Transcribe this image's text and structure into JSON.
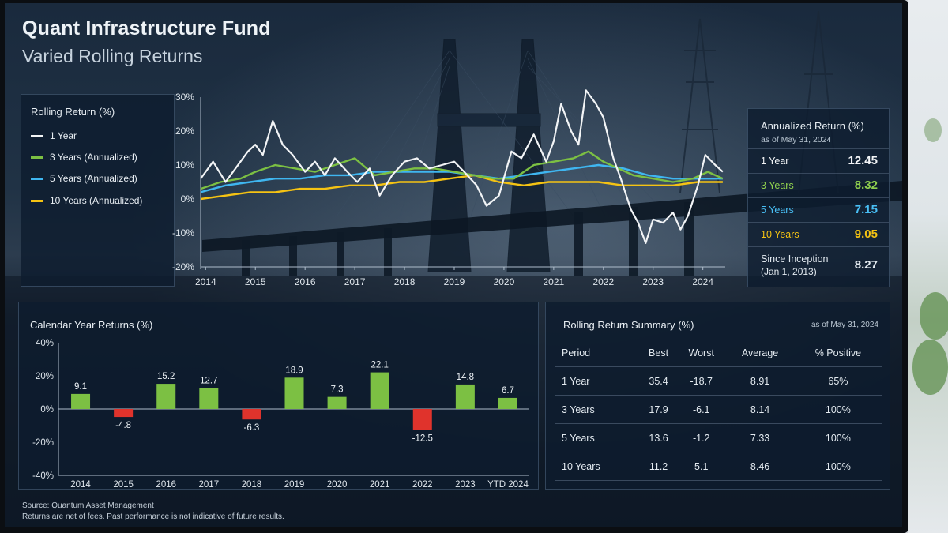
{
  "header": {
    "title": "Quant Infrastructure Fund",
    "subtitle": "Varied Rolling Returns"
  },
  "rolling_legend": {
    "title": "Rolling Return (%)",
    "items": [
      {
        "label": "1 Year",
        "color": "#f2f4f6"
      },
      {
        "label": "3 Years (Annualized)",
        "color": "#7cc043"
      },
      {
        "label": "5 Years (Annualized)",
        "color": "#3fb6f0"
      },
      {
        "label": "10 Years (Annualized)",
        "color": "#f5c313"
      }
    ]
  },
  "annualized": {
    "title": "Annualized Return (%)",
    "as_of": "as of May 31, 2024",
    "rows": [
      {
        "label": "1 Year",
        "value": "12.45",
        "color": "#f2f4f6"
      },
      {
        "label": "3 Years",
        "value": "8.32",
        "color": "#8fd04e"
      },
      {
        "label": "5 Years",
        "value": "7.15",
        "color": "#49bff5"
      },
      {
        "label": "10 Years",
        "value": "9.05",
        "color": "#f5c313"
      },
      {
        "label": "Since Inception",
        "sublabel": "(Jan 1, 2013)",
        "value": "8.27",
        "color": "#e3eaf0"
      }
    ]
  },
  "chart_data": [
    {
      "type": "line",
      "yticks": [
        "30%",
        "20%",
        "10%",
        "0%",
        "-10%",
        "-20%"
      ],
      "ylim": [
        -20,
        30
      ],
      "xticks": [
        "2014",
        "2015",
        "2016",
        "2017",
        "2018",
        "2019",
        "2020",
        "2021",
        "2022",
        "2023",
        "2024"
      ],
      "xlim": [
        2013.9,
        2024.45
      ],
      "grid": false,
      "legend": "left",
      "series": [
        {
          "name": "1 Year",
          "color": "#f2f4f6",
          "x": [
            2013.9,
            2014.15,
            2014.4,
            2014.6,
            2014.85,
            2015.0,
            2015.15,
            2015.35,
            2015.55,
            2015.75,
            2016.0,
            2016.2,
            2016.4,
            2016.6,
            2016.85,
            2017.05,
            2017.3,
            2017.5,
            2017.75,
            2018.0,
            2018.25,
            2018.5,
            2018.75,
            2019.0,
            2019.2,
            2019.45,
            2019.65,
            2019.9,
            2020.15,
            2020.35,
            2020.6,
            2020.85,
            2021.0,
            2021.15,
            2021.35,
            2021.5,
            2021.65,
            2021.85,
            2022.0,
            2022.2,
            2022.35,
            2022.55,
            2022.7,
            2022.85,
            2023.0,
            2023.2,
            2023.4,
            2023.55,
            2023.7,
            2023.9,
            2024.05,
            2024.25,
            2024.4
          ],
          "values": [
            6,
            11,
            5,
            9,
            14,
            16,
            13,
            23,
            16,
            13,
            8,
            11,
            7,
            12,
            8,
            5,
            9,
            1,
            7,
            11,
            12,
            9,
            10,
            11,
            8,
            4,
            -2,
            1,
            14,
            12,
            19,
            11,
            17,
            28,
            20,
            16,
            32,
            28,
            24,
            12,
            6,
            -3,
            -7,
            -13,
            -6,
            -7,
            -4,
            -9,
            -5,
            4,
            13,
            10,
            8
          ]
        },
        {
          "name": "3 Years (Annualized)",
          "color": "#7cc043",
          "x": [
            2013.9,
            2014.3,
            2014.7,
            2015.0,
            2015.4,
            2015.8,
            2016.2,
            2016.6,
            2017.0,
            2017.4,
            2017.8,
            2018.2,
            2018.6,
            2019.0,
            2019.4,
            2019.8,
            2020.2,
            2020.6,
            2021.0,
            2021.4,
            2021.7,
            2022.0,
            2022.3,
            2022.6,
            2023.0,
            2023.4,
            2023.8,
            2024.1,
            2024.4
          ],
          "values": [
            3,
            5,
            6,
            8,
            10,
            9,
            8,
            10,
            12,
            7,
            8,
            9,
            9,
            8,
            7,
            6,
            6,
            10,
            11,
            12,
            14,
            11,
            9,
            7,
            6,
            5,
            6,
            8,
            6
          ]
        },
        {
          "name": "5 Years (Annualized)",
          "color": "#3fb6f0",
          "x": [
            2013.9,
            2014.4,
            2014.9,
            2015.4,
            2015.9,
            2016.4,
            2016.9,
            2017.4,
            2017.9,
            2018.4,
            2018.9,
            2019.4,
            2019.9,
            2020.4,
            2020.9,
            2021.4,
            2021.9,
            2022.4,
            2022.9,
            2023.4,
            2023.9,
            2024.4
          ],
          "values": [
            2,
            4,
            5,
            6,
            6,
            7,
            7,
            8,
            8,
            8,
            8,
            7,
            6,
            7,
            8,
            9,
            10,
            9,
            7,
            6,
            6,
            6
          ]
        },
        {
          "name": "10 Years (Annualized)",
          "color": "#f5c313",
          "x": [
            2013.9,
            2014.4,
            2014.9,
            2015.4,
            2015.9,
            2016.4,
            2016.9,
            2017.4,
            2017.9,
            2018.4,
            2018.9,
            2019.4,
            2019.9,
            2020.4,
            2020.9,
            2021.4,
            2021.9,
            2022.4,
            2022.9,
            2023.4,
            2023.9,
            2024.4
          ],
          "values": [
            0,
            1,
            2,
            2,
            3,
            3,
            4,
            4,
            5,
            5,
            6,
            7,
            5,
            4,
            5,
            5,
            5,
            4,
            4,
            4,
            5,
            5
          ]
        }
      ]
    },
    {
      "type": "bar",
      "title": "Calendar Year Returns (%)",
      "categories": [
        "2014",
        "2015",
        "2016",
        "2017",
        "2018",
        "2019",
        "2020",
        "2021",
        "2022",
        "2023",
        "YTD 2024"
      ],
      "values": [
        9.1,
        -4.8,
        15.2,
        12.7,
        -6.3,
        18.9,
        7.3,
        22.1,
        -12.5,
        14.8,
        6.7
      ],
      "data_labels": [
        "9.1",
        "-4.8",
        "15.2",
        "12.7",
        "-6.3",
        "18.9",
        "7.3",
        "22.1",
        "-12.5",
        "14.8",
        "6.7"
      ],
      "yticks": [
        "40%",
        "20%",
        "0%",
        "-20%",
        "-40%"
      ],
      "ylim": [
        -40,
        40
      ],
      "positive_color": "#7cc043",
      "negative_color": "#e0332c"
    }
  ],
  "summary": {
    "title": "Rolling Return Summary (%)",
    "as_of": "as of May 31, 2024",
    "headers": [
      "Period",
      "Best",
      "Worst",
      "Average",
      "% Positive"
    ],
    "rows": [
      [
        "1 Year",
        "35.4",
        "-18.7",
        "8.91",
        "65%"
      ],
      [
        "3 Years",
        "17.9",
        "-6.1",
        "8.14",
        "100%"
      ],
      [
        "5 Years",
        "13.6",
        "-1.2",
        "7.33",
        "100%"
      ],
      [
        "10 Years",
        "11.2",
        "5.1",
        "8.46",
        "100%"
      ]
    ]
  },
  "footer": {
    "source": "Source: Quantum Asset Management",
    "disclaimer": "Returns are net of fees.  Past performance is not indicative of future results."
  }
}
